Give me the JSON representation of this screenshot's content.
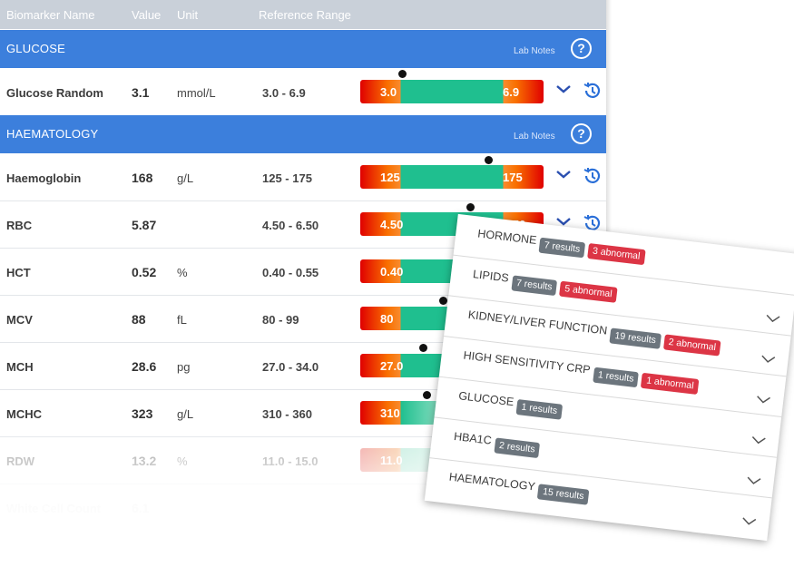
{
  "table": {
    "headers": {
      "name": "Biomarker Name",
      "value": "Value",
      "unit": "Unit",
      "range": "Reference  Range"
    },
    "sections": [
      {
        "title": "GLUCOSE",
        "lab_notes": "Lab Notes",
        "help": "?"
      },
      {
        "title": "HAEMATOLOGY",
        "lab_notes": "Lab Notes",
        "help": "?"
      }
    ],
    "rows": [
      {
        "name": "Glucose Random",
        "value": "3.1",
        "unit": "mmol/L",
        "ref": "3.0 - 6.9",
        "low": "3.0",
        "high": "6.9"
      },
      {
        "name": "Haemoglobin",
        "value": "168",
        "unit": "g/L",
        "ref": "125 - 175",
        "low": "125",
        "high": "175"
      },
      {
        "name": "RBC",
        "value": "5.87",
        "unit": "",
        "ref": "4.50 - 6.50",
        "low": "4.50",
        "high": "6.50"
      },
      {
        "name": "HCT",
        "value": "0.52",
        "unit": "%",
        "ref": "0.40 - 0.55",
        "low": "0.40",
        "high": ""
      },
      {
        "name": "MCV",
        "value": "88",
        "unit": "fL",
        "ref": "80 - 99",
        "low": "80",
        "high": ""
      },
      {
        "name": "MCH",
        "value": "28.6",
        "unit": "pg",
        "ref": "27.0 - 34.0",
        "low": "27.0",
        "high": ""
      },
      {
        "name": "MCHC",
        "value": "323",
        "unit": "g/L",
        "ref": "310 - 360",
        "low": "310",
        "high": ""
      },
      {
        "name": "RDW",
        "value": "13.2",
        "unit": "%",
        "ref": "11.0 - 15.0",
        "low": "11.0",
        "high": ""
      },
      {
        "name": "White Cell Count",
        "value": "6.1",
        "unit": "",
        "ref": "",
        "low": "",
        "high": ""
      }
    ],
    "icons": {
      "expand": "chevron-down-icon",
      "history": "history-icon",
      "help": "question-circle-icon"
    },
    "colors": {
      "header": "#c9d0d9",
      "section": "#3c7fdc",
      "in_range": "#1fbf8f",
      "out_range": "#e00000"
    }
  },
  "summary_card": {
    "items": [
      {
        "name": "HORMONE",
        "results": "7 results",
        "abnormal": "3 abnormal"
      },
      {
        "name": "LIPIDS",
        "results": "7 results",
        "abnormal": "5 abnormal"
      },
      {
        "name": "KIDNEY/LIVER FUNCTION",
        "results": "19 results",
        "abnormal": "2 abnormal"
      },
      {
        "name": "HIGH SENSITIVITY CRP",
        "results": "1 results",
        "abnormal": "1 abnormal"
      },
      {
        "name": "GLUCOSE",
        "results": "1 results",
        "abnormal": ""
      },
      {
        "name": "HBA1C",
        "results": "2 results",
        "abnormal": ""
      },
      {
        "name": "HAEMATOLOGY",
        "results": "15 results",
        "abnormal": ""
      }
    ],
    "colors": {
      "results_badge": "#6c757d",
      "abnormal_badge": "#dc3545"
    }
  }
}
